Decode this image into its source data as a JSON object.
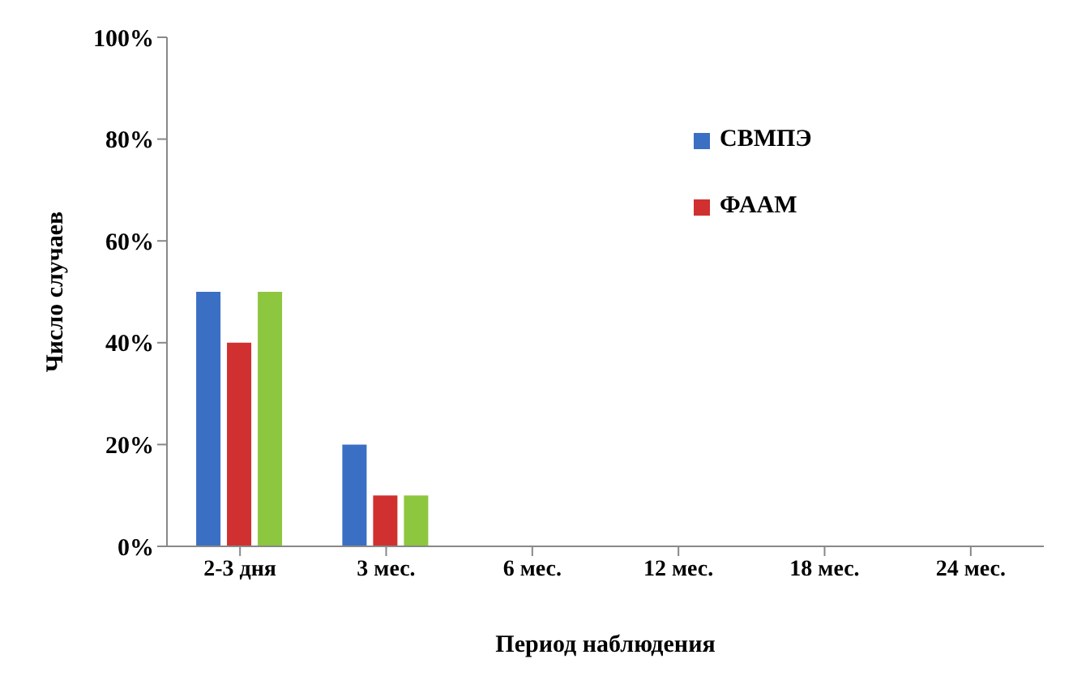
{
  "chart_data": {
    "type": "bar",
    "xlabel": "Период наблюдения",
    "ylabel": "Число случаев",
    "categories": [
      "2-3 дня",
      "3 мес.",
      "6 мес.",
      "12 мес.",
      "18 мес.",
      "24 мес."
    ],
    "series": [
      {
        "name": "СВМПЭ",
        "color": "#3a6fc4",
        "values": [
          50,
          20,
          0,
          0,
          0,
          0
        ]
      },
      {
        "name": "ФААМ",
        "color": "#d03030",
        "values": [
          40,
          10,
          0,
          0,
          0,
          0
        ]
      },
      {
        "color": "#8dc63f",
        "values": [
          50,
          10,
          0,
          0,
          0,
          0
        ]
      }
    ],
    "ylim": [
      0,
      100
    ],
    "yticks": [
      {
        "value": 0,
        "label": "0%"
      },
      {
        "value": 20,
        "label": "20%"
      },
      {
        "value": 40,
        "label": "40%"
      },
      {
        "value": 60,
        "label": "60%"
      },
      {
        "value": 80,
        "label": "80%"
      },
      {
        "value": 100,
        "label": "100%"
      }
    ],
    "grid": false,
    "legend": "top right"
  }
}
